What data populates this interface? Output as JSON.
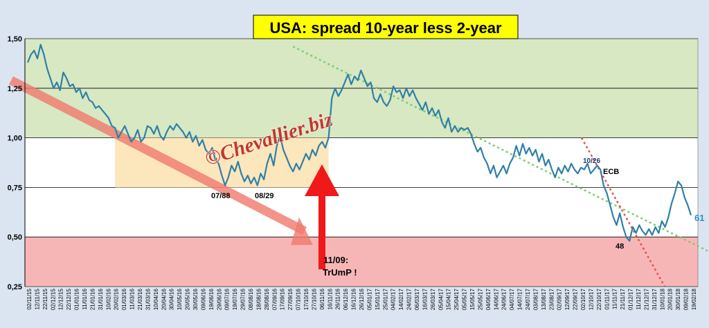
{
  "chart_data": {
    "type": "line",
    "title": "USA: spread 10-year less 2-year",
    "watermark": "©Chevallier.biz",
    "ylim": [
      0.25,
      1.5
    ],
    "yticks": [
      "0,25",
      "0,50",
      "0,75",
      "1,00",
      "1,25",
      "1,50"
    ],
    "bands": [
      {
        "from": 1.0,
        "to": 1.5,
        "color": "#d7e8c3"
      },
      {
        "from": 0.5,
        "to": 1.0,
        "color": "#ffffff"
      },
      {
        "from": 0.25,
        "to": 0.5,
        "color": "#f7b6b6"
      }
    ],
    "xticks": [
      "02/11/15",
      "12/11/15",
      "22/11/15",
      "02/12/15",
      "12/12/15",
      "22/12/15",
      "01/01/16",
      "11/01/16",
      "21/01/16",
      "31/01/16",
      "10/02/16",
      "20/02/16",
      "01/03/16",
      "11/03/16",
      "21/03/16",
      "31/03/16",
      "10/04/16",
      "20/04/16",
      "30/04/16",
      "10/05/16",
      "20/05/16",
      "30/05/16",
      "09/06/16",
      "19/06/16",
      "29/06/16",
      "09/07/16",
      "19/07/16",
      "29/07/16",
      "08/08/16",
      "18/08/16",
      "28/08/16",
      "07/09/16",
      "17/09/16",
      "27/09/16",
      "07/10/16",
      "17/10/16",
      "27/10/16",
      "06/11/16",
      "16/11/16",
      "26/11/16",
      "06/12/16",
      "16/12/16",
      "26/12/16",
      "05/01/17",
      "15/01/17",
      "25/01/17",
      "04/02/17",
      "14/02/17",
      "24/02/17",
      "06/03/17",
      "16/03/17",
      "26/03/17",
      "05/04/17",
      "15/04/17",
      "25/04/17",
      "05/05/17",
      "15/05/17",
      "25/05/17",
      "04/06/17",
      "14/06/17",
      "24/06/17",
      "04/07/17",
      "14/07/17",
      "24/07/17",
      "03/08/17",
      "13/08/17",
      "23/08/17",
      "02/09/17",
      "12/09/17",
      "22/09/17",
      "02/10/17",
      "12/10/17",
      "22/10/17",
      "01/11/17",
      "11/11/17",
      "21/11/17",
      "01/12/17",
      "11/12/17",
      "21/12/17",
      "31/12/17",
      "10/01/18",
      "20/01/18",
      "30/01/18",
      "09/02/18",
      "19/02/18"
    ],
    "series": [
      {
        "color": "#2f7fa7",
        "values": [
          [
            0,
            1.38
          ],
          [
            1,
            1.42
          ],
          [
            2,
            1.44
          ],
          [
            3,
            1.4
          ],
          [
            4,
            1.47
          ],
          [
            5,
            1.42
          ],
          [
            6,
            1.35
          ],
          [
            7,
            1.3
          ],
          [
            8,
            1.25
          ],
          [
            9,
            1.28
          ],
          [
            10,
            1.24
          ],
          [
            11,
            1.33
          ],
          [
            12,
            1.3
          ],
          [
            13,
            1.26
          ],
          [
            14,
            1.27
          ],
          [
            15,
            1.23
          ],
          [
            16,
            1.25
          ],
          [
            17,
            1.2
          ],
          [
            18,
            1.23
          ],
          [
            19,
            1.19
          ],
          [
            20,
            1.18
          ],
          [
            21,
            1.15
          ],
          [
            22,
            1.16
          ],
          [
            23,
            1.14
          ],
          [
            24,
            1.12
          ],
          [
            25,
            1.1
          ],
          [
            26,
            1.06
          ],
          [
            27,
            1.05
          ],
          [
            28,
            1.0
          ],
          [
            29,
            1.03
          ],
          [
            30,
            1.06
          ],
          [
            31,
            1.02
          ],
          [
            32,
            0.98
          ],
          [
            33,
            1.0
          ],
          [
            34,
            1.04
          ],
          [
            35,
            0.98
          ],
          [
            36,
            1.0
          ],
          [
            37,
            1.06
          ],
          [
            38,
            1.05
          ],
          [
            39,
            1.02
          ],
          [
            40,
            1.06
          ],
          [
            41,
            1.01
          ],
          [
            42,
            0.99
          ],
          [
            43,
            1.03
          ],
          [
            44,
            1.06
          ],
          [
            45,
            1.04
          ],
          [
            46,
            1.07
          ],
          [
            47,
            1.05
          ],
          [
            48,
            1.03
          ],
          [
            49,
            1.0
          ],
          [
            50,
            1.03
          ],
          [
            51,
            0.98
          ],
          [
            52,
            1.01
          ],
          [
            53,
            0.96
          ],
          [
            54,
            0.99
          ],
          [
            55,
            0.94
          ],
          [
            56,
            0.92
          ],
          [
            57,
            0.95
          ],
          [
            58,
            0.89
          ],
          [
            59,
            0.87
          ],
          [
            60,
            0.81
          ],
          [
            61,
            0.76
          ],
          [
            62,
            0.8
          ],
          [
            63,
            0.86
          ],
          [
            64,
            0.83
          ],
          [
            65,
            0.88
          ],
          [
            66,
            0.82
          ],
          [
            67,
            0.78
          ],
          [
            68,
            0.81
          ],
          [
            69,
            0.77
          ],
          [
            70,
            0.8
          ],
          [
            71,
            0.76
          ],
          [
            72,
            0.82
          ],
          [
            73,
            0.79
          ],
          [
            74,
            0.87
          ],
          [
            75,
            0.92
          ],
          [
            76,
            0.86
          ],
          [
            77,
            0.96
          ],
          [
            78,
            1.01
          ],
          [
            79,
            0.94
          ],
          [
            80,
            0.9
          ],
          [
            81,
            0.86
          ],
          [
            82,
            0.83
          ],
          [
            83,
            0.87
          ],
          [
            84,
            0.84
          ],
          [
            85,
            0.88
          ],
          [
            86,
            0.92
          ],
          [
            87,
            0.89
          ],
          [
            88,
            0.94
          ],
          [
            89,
            0.91
          ],
          [
            90,
            0.96
          ],
          [
            91,
            0.98
          ],
          [
            92,
            0.95
          ],
          [
            93,
            1.0
          ],
          [
            94,
            1.2
          ],
          [
            95,
            1.25
          ],
          [
            96,
            1.21
          ],
          [
            97,
            1.24
          ],
          [
            98,
            1.28
          ],
          [
            99,
            1.32
          ],
          [
            100,
            1.27
          ],
          [
            101,
            1.31
          ],
          [
            102,
            1.29
          ],
          [
            103,
            1.34
          ],
          [
            104,
            1.3
          ],
          [
            105,
            1.26
          ],
          [
            106,
            1.28
          ],
          [
            107,
            1.2
          ],
          [
            108,
            1.18
          ],
          [
            109,
            1.22
          ],
          [
            110,
            1.18
          ],
          [
            111,
            1.16
          ],
          [
            112,
            1.19
          ],
          [
            113,
            1.26
          ],
          [
            114,
            1.23
          ],
          [
            115,
            1.24
          ],
          [
            116,
            1.2
          ],
          [
            117,
            1.25
          ],
          [
            118,
            1.21
          ],
          [
            119,
            1.24
          ],
          [
            120,
            1.2
          ],
          [
            121,
            1.17
          ],
          [
            122,
            1.14
          ],
          [
            123,
            1.18
          ],
          [
            124,
            1.12
          ],
          [
            125,
            1.15
          ],
          [
            126,
            1.11
          ],
          [
            127,
            1.14
          ],
          [
            128,
            1.08
          ],
          [
            129,
            1.05
          ],
          [
            130,
            1.1
          ],
          [
            131,
            1.03
          ],
          [
            132,
            1.06
          ],
          [
            133,
            1.03
          ],
          [
            134,
            1.05
          ],
          [
            135,
            1.04
          ],
          [
            136,
            1.05
          ],
          [
            137,
            1.02
          ],
          [
            138,
            0.97
          ],
          [
            139,
            0.93
          ],
          [
            140,
            0.95
          ],
          [
            141,
            0.9
          ],
          [
            142,
            0.87
          ],
          [
            143,
            0.82
          ],
          [
            144,
            0.86
          ],
          [
            145,
            0.8
          ],
          [
            146,
            0.83
          ],
          [
            147,
            0.86
          ],
          [
            148,
            0.82
          ],
          [
            149,
            0.87
          ],
          [
            150,
            0.9
          ],
          [
            151,
            0.96
          ],
          [
            152,
            0.91
          ],
          [
            153,
            0.97
          ],
          [
            154,
            0.92
          ],
          [
            155,
            0.95
          ],
          [
            156,
            0.91
          ],
          [
            157,
            0.94
          ],
          [
            158,
            0.88
          ],
          [
            159,
            0.92
          ],
          [
            160,
            0.86
          ],
          [
            161,
            0.89
          ],
          [
            162,
            0.84
          ],
          [
            163,
            0.8
          ],
          [
            164,
            0.85
          ],
          [
            165,
            0.82
          ],
          [
            166,
            0.86
          ],
          [
            167,
            0.83
          ],
          [
            168,
            0.87
          ],
          [
            169,
            0.84
          ],
          [
            170,
            0.82
          ],
          [
            171,
            0.85
          ],
          [
            172,
            0.84
          ],
          [
            173,
            0.87
          ],
          [
            174,
            0.82
          ],
          [
            175,
            0.84
          ],
          [
            176,
            0.86
          ],
          [
            177,
            0.84
          ],
          [
            178,
            0.76
          ],
          [
            179,
            0.72
          ],
          [
            180,
            0.66
          ],
          [
            181,
            0.6
          ],
          [
            182,
            0.56
          ],
          [
            183,
            0.62
          ],
          [
            184,
            0.55
          ],
          [
            185,
            0.5
          ],
          [
            186,
            0.48
          ],
          [
            187,
            0.55
          ],
          [
            188,
            0.52
          ],
          [
            189,
            0.56
          ],
          [
            190,
            0.53
          ],
          [
            191,
            0.51
          ],
          [
            192,
            0.54
          ],
          [
            193,
            0.51
          ],
          [
            194,
            0.55
          ],
          [
            195,
            0.52
          ],
          [
            196,
            0.58
          ],
          [
            197,
            0.55
          ],
          [
            198,
            0.6
          ],
          [
            199,
            0.67
          ],
          [
            200,
            0.72
          ],
          [
            201,
            0.78
          ],
          [
            202,
            0.76
          ],
          [
            203,
            0.7
          ],
          [
            204,
            0.66
          ],
          [
            205,
            0.61
          ]
        ]
      }
    ],
    "annotations": {
      "low_1": "07/88",
      "low_2": "08/29",
      "ecb_date": "10/26",
      "ecb_label": "ECB",
      "low_48": "48",
      "last_value": "61",
      "event_date": "11/09:",
      "event_text": "TrUmP !"
    },
    "colors": {
      "title_box": "#ffff00",
      "line": "#2f7fa7",
      "trend_big": "#f07a6e",
      "trend_green": "#7ccc6c",
      "trend_red": "#e55050",
      "shade_box": "#fbe2b0",
      "arrow": "#f01818"
    }
  }
}
